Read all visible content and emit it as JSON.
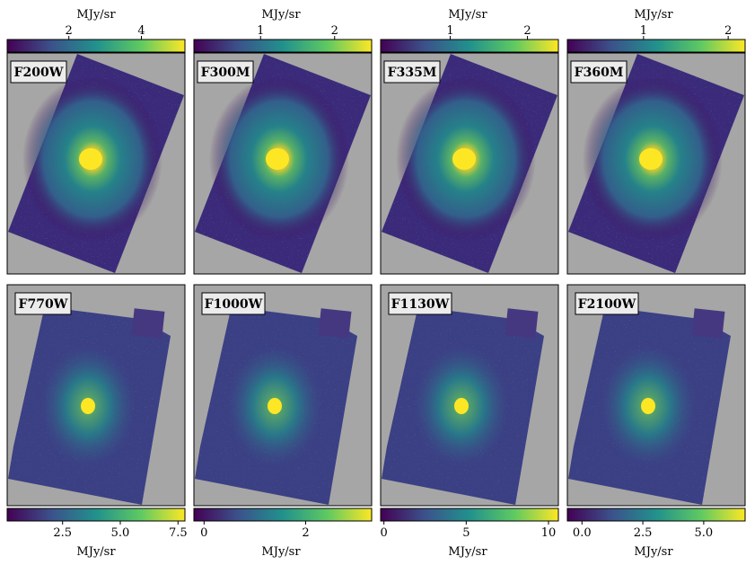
{
  "colors": {
    "background": "#a6a6a6",
    "frame": "#000000",
    "label_box": "#ececec",
    "viridis_stops": [
      "#440154",
      "#3b528b",
      "#21918c",
      "#5ec962",
      "#fde725"
    ]
  },
  "top_panels": [
    {
      "label": "F200W",
      "cbar_title": "MJy/sr",
      "cbar_min": 0.3,
      "cbar_max": 5.2,
      "ticks": [
        {
          "value": 2,
          "label": "2"
        },
        {
          "value": 4,
          "label": "4"
        }
      ]
    },
    {
      "label": "F300M",
      "cbar_title": "MJy/sr",
      "cbar_min": 0.1,
      "cbar_max": 2.5,
      "ticks": [
        {
          "value": 1,
          "label": "1"
        },
        {
          "value": 2,
          "label": "2"
        }
      ]
    },
    {
      "label": "F335M",
      "cbar_title": "MJy/sr",
      "cbar_min": 0.1,
      "cbar_max": 2.4,
      "ticks": [
        {
          "value": 1,
          "label": "1"
        },
        {
          "value": 2,
          "label": "2"
        }
      ]
    },
    {
      "label": "F360M",
      "cbar_title": "MJy/sr",
      "cbar_min": 0.1,
      "cbar_max": 2.2,
      "ticks": [
        {
          "value": 1,
          "label": "1"
        },
        {
          "value": 2,
          "label": "2"
        }
      ]
    }
  ],
  "bottom_panels": [
    {
      "label": "F770W",
      "cbar_title": "MJy/sr",
      "cbar_min": 0.1,
      "cbar_max": 7.8,
      "ticks": [
        {
          "value": 2.5,
          "label": "2.5"
        },
        {
          "value": 5.0,
          "label": "5.0"
        },
        {
          "value": 7.5,
          "label": "7.5"
        }
      ]
    },
    {
      "label": "F1000W",
      "cbar_title": "MJy/sr",
      "cbar_min": -0.2,
      "cbar_max": 3.3,
      "ticks": [
        {
          "value": 0,
          "label": "0"
        },
        {
          "value": 2,
          "label": "2"
        }
      ]
    },
    {
      "label": "F1130W",
      "cbar_title": "MJy/sr",
      "cbar_min": -0.2,
      "cbar_max": 10.6,
      "ticks": [
        {
          "value": 0,
          "label": "0"
        },
        {
          "value": 5,
          "label": "5"
        },
        {
          "value": 10,
          "label": "10"
        }
      ]
    },
    {
      "label": "F2100W",
      "cbar_title": "MJy/sr",
      "cbar_min": -0.6,
      "cbar_max": 6.7,
      "ticks": [
        {
          "value": 0.0,
          "label": "0.0"
        },
        {
          "value": 2.5,
          "label": "2.5"
        },
        {
          "value": 5.0,
          "label": "5.0"
        }
      ]
    }
  ]
}
